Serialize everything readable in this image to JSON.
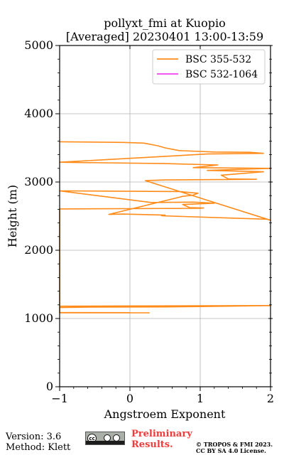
{
  "chart_data": {
    "type": "line",
    "title": "pollyxt_fmi at Kuopio",
    "subtitle": "[Averaged] 20230401 13:00-13:59",
    "xlabel": "Angstroem Exponent",
    "ylabel": "Height (m)",
    "xlim": [
      -1,
      2
    ],
    "ylim": [
      0,
      5000
    ],
    "xticks": [
      -1,
      0,
      1,
      2
    ],
    "xtick_labels": [
      "−1",
      "0",
      "1",
      "2"
    ],
    "yticks": [
      0,
      1000,
      2000,
      3000,
      4000,
      5000
    ],
    "ytick_labels": [
      "0",
      "1000",
      "2000",
      "3000",
      "4000",
      "5000"
    ],
    "grid": true,
    "legend_position": "top-right",
    "series": [
      {
        "name": "BSC 355-532",
        "color": "#ff8c1a",
        "points": [
          [
            0.28,
            1083
          ],
          [
            -1.0,
            1083
          ],
          [
            -1.0,
            1085
          ],
          [
            0.0,
            1085
          ],
          [
            -1.0,
            1087
          ],
          [
            -1.0,
            1090
          ],
          [
            -1.0,
            1160
          ],
          [
            -0.5,
            1168
          ],
          [
            0.5,
            1170
          ],
          [
            1.0,
            1175
          ],
          [
            2.0,
            1190
          ],
          [
            -1.0,
            1180
          ],
          [
            -1.0,
            2600
          ],
          [
            -1.0,
            2605
          ],
          [
            1.0,
            2615
          ],
          [
            1.05,
            2620
          ],
          [
            0.85,
            2625
          ],
          [
            0.75,
            2670
          ],
          [
            1.2,
            2690
          ],
          [
            0.9,
            2705
          ],
          [
            0.3,
            2700
          ],
          [
            -1.0,
            2870
          ],
          [
            0.7,
            2860
          ],
          [
            0.97,
            2835
          ],
          [
            0.9,
            2808
          ],
          [
            0.75,
            2790
          ],
          [
            -0.3,
            2525
          ],
          [
            -0.1,
            2530
          ],
          [
            0.5,
            2515
          ],
          [
            0.45,
            2505
          ],
          [
            1.5,
            2470
          ],
          [
            1.95,
            2455
          ],
          [
            2.0,
            2440
          ],
          [
            0.22,
            3020
          ],
          [
            0.5,
            3030
          ],
          [
            1.8,
            3040
          ],
          [
            1.4,
            3045
          ],
          [
            1.3,
            3100
          ],
          [
            1.9,
            3150
          ],
          [
            1.1,
            3170
          ],
          [
            2.0,
            3200
          ],
          [
            0.9,
            3210
          ],
          [
            1.25,
            3250
          ],
          [
            0.5,
            3270
          ],
          [
            -1.0,
            3290
          ],
          [
            1.1,
            3410
          ],
          [
            1.9,
            3420
          ],
          [
            1.7,
            3435
          ],
          [
            1.2,
            3440
          ],
          [
            0.7,
            3460
          ],
          [
            0.5,
            3500
          ],
          [
            0.4,
            3530
          ],
          [
            0.2,
            3570
          ],
          [
            -0.1,
            3580
          ],
          [
            -1.0,
            3590
          ]
        ]
      },
      {
        "name": "BSC 532-1064",
        "color": "#ee40ee",
        "points": []
      }
    ]
  },
  "footer": {
    "version": "Version: 3.6",
    "method": "Method: Klett",
    "preliminary_line1": "Preliminary",
    "preliminary_line2": "Results.",
    "copyright_line1": "© TROPOS & FMI 2023.",
    "copyright_line2": "CC BY SA 4.0 License.",
    "cc_badge": "cc-by-sa-badge-icon"
  }
}
